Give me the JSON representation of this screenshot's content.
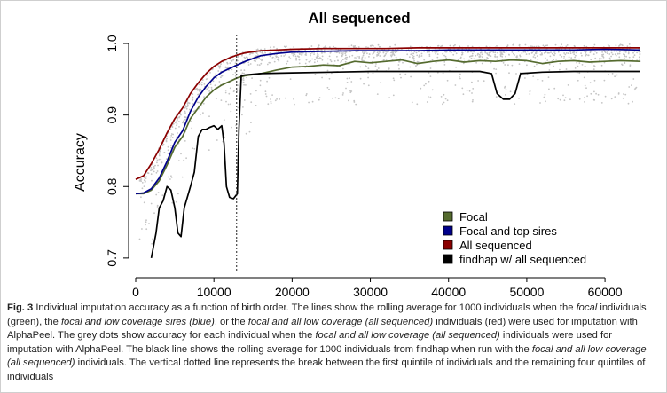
{
  "chart_data": {
    "type": "line",
    "title": "All sequenced",
    "xlabel": "",
    "ylabel": "Accuracy",
    "xlim": [
      0,
      66000
    ],
    "ylim": [
      0.68,
      1.005
    ],
    "xticks": [
      0,
      10000,
      20000,
      30000,
      40000,
      50000,
      60000
    ],
    "xtick_labels": [
      "0",
      "10000",
      "20000",
      "30000",
      "40000",
      "50000",
      "60000"
    ],
    "yticks": [
      0.7,
      0.8,
      0.9,
      1.0
    ],
    "ytick_labels": [
      "0.7",
      "0.8",
      "0.9",
      "1.0"
    ],
    "vline_x": 12900,
    "legend_position": "bottom-right",
    "scatter_note": "grey dots: per-individual accuracy",
    "series": [
      {
        "name": "Focal",
        "color": "#556b2f",
        "x": [
          0,
          1000,
          2000,
          3000,
          4000,
          5000,
          6000,
          7000,
          8000,
          9000,
          10000,
          11000,
          12000,
          13000,
          14000,
          16000,
          18000,
          20000,
          22000,
          24000,
          26000,
          28000,
          30000,
          32000,
          34000,
          36000,
          38000,
          40000,
          42000,
          44000,
          46000,
          48000,
          50000,
          52000,
          54000,
          56000,
          58000,
          60000,
          62000,
          64500
        ],
        "y": [
          0.79,
          0.79,
          0.795,
          0.808,
          0.83,
          0.855,
          0.87,
          0.895,
          0.91,
          0.925,
          0.935,
          0.942,
          0.947,
          0.952,
          0.955,
          0.958,
          0.963,
          0.967,
          0.968,
          0.97,
          0.969,
          0.975,
          0.973,
          0.975,
          0.977,
          0.972,
          0.975,
          0.977,
          0.974,
          0.976,
          0.975,
          0.977,
          0.976,
          0.972,
          0.975,
          0.976,
          0.974,
          0.975,
          0.976,
          0.975
        ]
      },
      {
        "name": "Focal and top sires",
        "color": "#00008b",
        "x": [
          0,
          1000,
          2000,
          3000,
          4000,
          5000,
          6000,
          7000,
          8000,
          9000,
          10000,
          11000,
          12000,
          13000,
          14000,
          16000,
          18000,
          20000,
          24000,
          28000,
          32000,
          36000,
          40000,
          44000,
          48000,
          52000,
          56000,
          60000,
          64500
        ],
        "y": [
          0.79,
          0.791,
          0.797,
          0.812,
          0.835,
          0.862,
          0.878,
          0.905,
          0.925,
          0.94,
          0.952,
          0.96,
          0.965,
          0.97,
          0.975,
          0.983,
          0.986,
          0.988,
          0.989,
          0.99,
          0.99,
          0.99,
          0.991,
          0.991,
          0.991,
          0.991,
          0.991,
          0.992,
          0.991
        ]
      },
      {
        "name": "All sequenced",
        "color": "#8b0000",
        "x": [
          0,
          1000,
          2000,
          3000,
          4000,
          5000,
          6000,
          7000,
          8000,
          9000,
          10000,
          11000,
          12000,
          13000,
          14000,
          16000,
          18000,
          20000,
          24000,
          28000,
          32000,
          36000,
          40000,
          44000,
          48000,
          52000,
          56000,
          60000,
          64500
        ],
        "y": [
          0.81,
          0.815,
          0.832,
          0.852,
          0.875,
          0.895,
          0.91,
          0.93,
          0.945,
          0.958,
          0.968,
          0.975,
          0.98,
          0.984,
          0.987,
          0.99,
          0.991,
          0.992,
          0.993,
          0.993,
          0.993,
          0.994,
          0.994,
          0.994,
          0.994,
          0.994,
          0.994,
          0.994,
          0.994
        ]
      },
      {
        "name": "findhap w/ all sequenced",
        "color": "#000000",
        "x": [
          2000,
          2600,
          3000,
          3500,
          4000,
          4500,
          5000,
          5400,
          5800,
          6200,
          6600,
          7000,
          7500,
          8000,
          8500,
          9000,
          9500,
          10000,
          10500,
          11000,
          11300,
          11600,
          12000,
          12500,
          13000,
          13200,
          13500,
          14000,
          16000,
          20000,
          25000,
          30000,
          35000,
          40000,
          44000,
          45500,
          46200,
          47000,
          47800,
          48500,
          49200,
          52000,
          56000,
          60000,
          64500
        ],
        "y": [
          0.7,
          0.735,
          0.77,
          0.78,
          0.8,
          0.795,
          0.77,
          0.735,
          0.73,
          0.77,
          0.785,
          0.8,
          0.82,
          0.87,
          0.88,
          0.88,
          0.883,
          0.885,
          0.88,
          0.885,
          0.86,
          0.8,
          0.785,
          0.783,
          0.79,
          0.88,
          0.955,
          0.956,
          0.958,
          0.959,
          0.96,
          0.961,
          0.961,
          0.961,
          0.961,
          0.958,
          0.93,
          0.922,
          0.922,
          0.93,
          0.958,
          0.96,
          0.961,
          0.961,
          0.961
        ]
      }
    ]
  },
  "caption": {
    "fig_label": "Fig. 3",
    "t1": "  Individual imputation accuracy as a function of birth order. The lines show the rolling average for 1000 individuals when the ",
    "e1": "focal",
    "t2": " individuals (green), the ",
    "e2": "focal and low coverage sires (blue)",
    "t3": ", or the ",
    "e3": "focal and all low coverage (all sequenced)",
    "t4": " individuals (red) were used for imputation with AlphaPeel. The grey dots show accuracy for each individual when the ",
    "e4": "focal and all low coverage (all sequenced)",
    "t5": " individuals were used for imputation with AlphaPeel. The black line shows the rolling average for 1000 individuals from findhap when run with the ",
    "e5": "focal and all low coverage (all sequenced)",
    "t6": " individuals. The vertical dotted line represents the break between the first quintile of individuals and the remaining four quintiles of individuals"
  }
}
